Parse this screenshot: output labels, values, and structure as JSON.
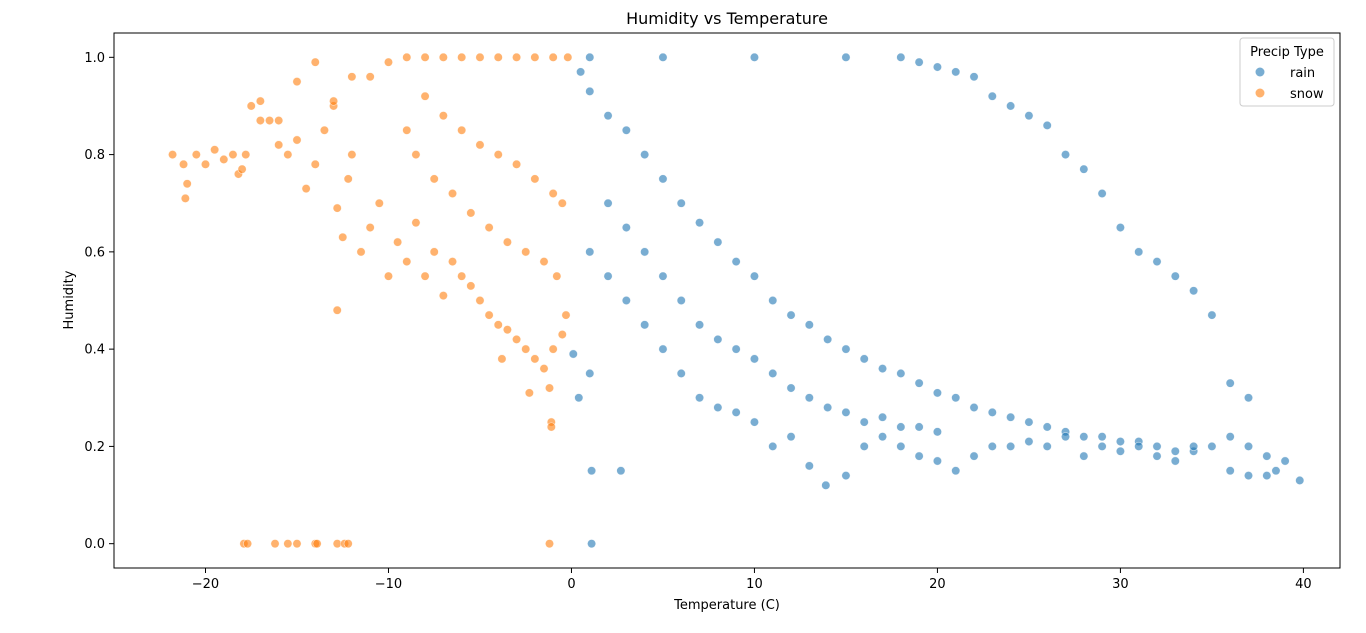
{
  "chart_data": {
    "type": "scatter",
    "title": "Humidity vs Temperature",
    "xlabel": "Temperature (C)",
    "ylabel": "Humidity",
    "xlim": [
      -25,
      42
    ],
    "ylim": [
      -0.05,
      1.05
    ],
    "xticks": [
      -20,
      -10,
      0,
      10,
      20,
      30,
      40
    ],
    "xtick_labels": [
      "−20",
      "−10",
      "0",
      "10",
      "20",
      "30",
      "40"
    ],
    "yticks": [
      0.0,
      0.2,
      0.4,
      0.6,
      0.8,
      1.0
    ],
    "ytick_labels": [
      "0.0",
      "0.2",
      "0.4",
      "0.6",
      "0.8",
      "1.0"
    ],
    "grid": false,
    "legend": {
      "title": "Precip Type",
      "position": "top-right"
    },
    "series": [
      {
        "name": "rain",
        "color": "#1f77b4",
        "points": [
          [
            0.5,
            0.97
          ],
          [
            1,
            0.93
          ],
          [
            2,
            0.88
          ],
          [
            3,
            0.85
          ],
          [
            4,
            0.8
          ],
          [
            5,
            0.75
          ],
          [
            6,
            0.7
          ],
          [
            7,
            0.66
          ],
          [
            8,
            0.62
          ],
          [
            9,
            0.58
          ],
          [
            10,
            0.55
          ],
          [
            11,
            0.5
          ],
          [
            12,
            0.47
          ],
          [
            13,
            0.45
          ],
          [
            14,
            0.42
          ],
          [
            15,
            0.4
          ],
          [
            16,
            0.38
          ],
          [
            17,
            0.36
          ],
          [
            18,
            0.35
          ],
          [
            19,
            0.33
          ],
          [
            20,
            0.31
          ],
          [
            21,
            0.3
          ],
          [
            22,
            0.28
          ],
          [
            23,
            0.27
          ],
          [
            24,
            0.26
          ],
          [
            25,
            0.25
          ],
          [
            26,
            0.24
          ],
          [
            27,
            0.23
          ],
          [
            28,
            0.22
          ],
          [
            29,
            0.22
          ],
          [
            30,
            0.21
          ],
          [
            31,
            0.21
          ],
          [
            32,
            0.2
          ],
          [
            33,
            0.19
          ],
          [
            34,
            0.19
          ],
          [
            35,
            0.2
          ],
          [
            36,
            0.22
          ],
          [
            37,
            0.2
          ],
          [
            38,
            0.18
          ],
          [
            39,
            0.17
          ],
          [
            39.8,
            0.13
          ],
          [
            1,
            0.6
          ],
          [
            2,
            0.55
          ],
          [
            3,
            0.5
          ],
          [
            4,
            0.45
          ],
          [
            5,
            0.4
          ],
          [
            6,
            0.35
          ],
          [
            7,
            0.3
          ],
          [
            8,
            0.28
          ],
          [
            9,
            0.27
          ],
          [
            10,
            0.25
          ],
          [
            11,
            0.2
          ],
          [
            12,
            0.22
          ],
          [
            13,
            0.16
          ],
          [
            13.9,
            0.12
          ],
          [
            15,
            0.14
          ],
          [
            16,
            0.2
          ],
          [
            17,
            0.22
          ],
          [
            18,
            0.2
          ],
          [
            19,
            0.18
          ],
          [
            20,
            0.17
          ],
          [
            21,
            0.15
          ],
          [
            22,
            0.18
          ],
          [
            23,
            0.2
          ],
          [
            24,
            0.2
          ],
          [
            25,
            0.21
          ],
          [
            26,
            0.2
          ],
          [
            27,
            0.22
          ],
          [
            28,
            0.18
          ],
          [
            29,
            0.2
          ],
          [
            30,
            0.19
          ],
          [
            31,
            0.2
          ],
          [
            32,
            0.18
          ],
          [
            33,
            0.17
          ],
          [
            34,
            0.2
          ],
          [
            36,
            0.15
          ],
          [
            37,
            0.14
          ],
          [
            38,
            0.14
          ],
          [
            38.5,
            0.15
          ],
          [
            1.1,
            0.15
          ],
          [
            2.7,
            0.15
          ],
          [
            1.1,
            0.0
          ],
          [
            0.4,
            0.3
          ],
          [
            0.1,
            0.39
          ],
          [
            1,
            0.35
          ],
          [
            1,
            1.0
          ],
          [
            5,
            1.0
          ],
          [
            10,
            1.0
          ],
          [
            15,
            1.0
          ],
          [
            18,
            1.0
          ],
          [
            19,
            0.99
          ],
          [
            20,
            0.98
          ],
          [
            21,
            0.97
          ],
          [
            22,
            0.96
          ],
          [
            23,
            0.92
          ],
          [
            24,
            0.9
          ],
          [
            25,
            0.88
          ],
          [
            26,
            0.86
          ],
          [
            27,
            0.8
          ],
          [
            28,
            0.77
          ],
          [
            29,
            0.72
          ],
          [
            30,
            0.65
          ],
          [
            31,
            0.6
          ],
          [
            32,
            0.58
          ],
          [
            33,
            0.55
          ],
          [
            34,
            0.52
          ],
          [
            35,
            0.47
          ],
          [
            36,
            0.33
          ],
          [
            37,
            0.3
          ],
          [
            2,
            0.7
          ],
          [
            3,
            0.65
          ],
          [
            4,
            0.6
          ],
          [
            5,
            0.55
          ],
          [
            6,
            0.5
          ],
          [
            7,
            0.45
          ],
          [
            8,
            0.42
          ],
          [
            9,
            0.4
          ],
          [
            10,
            0.38
          ],
          [
            11,
            0.35
          ],
          [
            12,
            0.32
          ],
          [
            13,
            0.3
          ],
          [
            14,
            0.28
          ],
          [
            15,
            0.27
          ],
          [
            16,
            0.25
          ],
          [
            17,
            0.26
          ],
          [
            18,
            0.24
          ],
          [
            19,
            0.24
          ],
          [
            20,
            0.23
          ]
        ]
      },
      {
        "name": "snow",
        "color": "#ff7f0e",
        "points": [
          [
            -21.8,
            0.8
          ],
          [
            -21.2,
            0.78
          ],
          [
            -21,
            0.74
          ],
          [
            -21.1,
            0.71
          ],
          [
            -20.5,
            0.8
          ],
          [
            -20,
            0.78
          ],
          [
            -19.5,
            0.81
          ],
          [
            -19,
            0.79
          ],
          [
            -18.5,
            0.8
          ],
          [
            -18.2,
            0.76
          ],
          [
            -18,
            0.77
          ],
          [
            -17.8,
            0.8
          ],
          [
            -17.5,
            0.9
          ],
          [
            -17,
            0.91
          ],
          [
            -16.5,
            0.87
          ],
          [
            -16,
            0.82
          ],
          [
            -15.5,
            0.8
          ],
          [
            -15,
            0.83
          ],
          [
            -14.5,
            0.73
          ],
          [
            -14,
            0.78
          ],
          [
            -13.5,
            0.85
          ],
          [
            -13,
            0.9
          ],
          [
            -12.8,
            0.69
          ],
          [
            -12.5,
            0.63
          ],
          [
            -12.2,
            0.75
          ],
          [
            -12,
            0.8
          ],
          [
            -11.5,
            0.6
          ],
          [
            -11,
            0.65
          ],
          [
            -10.5,
            0.7
          ],
          [
            -10,
            0.55
          ],
          [
            -9.5,
            0.62
          ],
          [
            -9,
            0.58
          ],
          [
            -8.5,
            0.66
          ],
          [
            -8,
            0.55
          ],
          [
            -7.5,
            0.6
          ],
          [
            -7,
            0.51
          ],
          [
            -6.5,
            0.58
          ],
          [
            -6,
            0.55
          ],
          [
            -5.5,
            0.53
          ],
          [
            -5,
            0.5
          ],
          [
            -4.5,
            0.47
          ],
          [
            -4,
            0.45
          ],
          [
            -3.5,
            0.44
          ],
          [
            -3,
            0.42
          ],
          [
            -2.5,
            0.4
          ],
          [
            -2,
            0.38
          ],
          [
            -1.5,
            0.36
          ],
          [
            -1,
            0.4
          ],
          [
            -0.5,
            0.43
          ],
          [
            -0.3,
            0.47
          ],
          [
            -12.8,
            0.48
          ],
          [
            -3.8,
            0.38
          ],
          [
            -2.3,
            0.31
          ],
          [
            -1.2,
            0.32
          ],
          [
            -1.1,
            0.25
          ],
          [
            -1.1,
            0.24
          ],
          [
            -17.9,
            0.0
          ],
          [
            -17.7,
            0.0
          ],
          [
            -16.2,
            0.0
          ],
          [
            -15.5,
            0.0
          ],
          [
            -15,
            0.0
          ],
          [
            -14,
            0.0
          ],
          [
            -13.9,
            0.0
          ],
          [
            -12.8,
            0.0
          ],
          [
            -12.4,
            0.0
          ],
          [
            -12.2,
            0.0
          ],
          [
            -1.2,
            0.0
          ],
          [
            -9,
            1.0
          ],
          [
            -8,
            1.0
          ],
          [
            -7,
            1.0
          ],
          [
            -6,
            1.0
          ],
          [
            -5,
            1.0
          ],
          [
            -4,
            1.0
          ],
          [
            -3,
            1.0
          ],
          [
            -2,
            1.0
          ],
          [
            -1,
            1.0
          ],
          [
            -0.2,
            1.0
          ],
          [
            -10,
            0.99
          ],
          [
            -11,
            0.96
          ],
          [
            -12,
            0.96
          ],
          [
            -13,
            0.91
          ],
          [
            -14,
            0.99
          ],
          [
            -15,
            0.95
          ],
          [
            -16,
            0.87
          ],
          [
            -17,
            0.87
          ],
          [
            -8,
            0.92
          ],
          [
            -7,
            0.88
          ],
          [
            -6,
            0.85
          ],
          [
            -5,
            0.82
          ],
          [
            -4,
            0.8
          ],
          [
            -3,
            0.78
          ],
          [
            -2,
            0.75
          ],
          [
            -1,
            0.72
          ],
          [
            -0.5,
            0.7
          ],
          [
            -9,
            0.85
          ],
          [
            -8.5,
            0.8
          ],
          [
            -7.5,
            0.75
          ],
          [
            -6.5,
            0.72
          ],
          [
            -5.5,
            0.68
          ],
          [
            -4.5,
            0.65
          ],
          [
            -3.5,
            0.62
          ],
          [
            -2.5,
            0.6
          ],
          [
            -1.5,
            0.58
          ],
          [
            -0.8,
            0.55
          ]
        ]
      }
    ]
  }
}
